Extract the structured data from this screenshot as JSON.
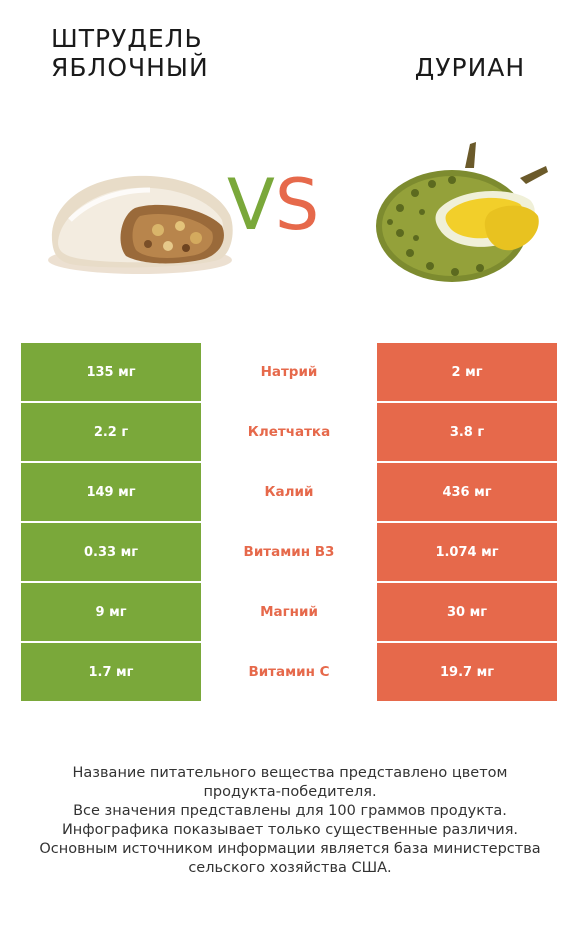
{
  "header": {
    "left_title": "Штрудель яблочный",
    "right_title": "Дуриан",
    "vs_v": "V",
    "vs_s": "S"
  },
  "colors": {
    "left": "#7aa83a",
    "right": "#e6694b"
  },
  "chart_data": {
    "type": "table",
    "columns": [
      "Штрудель яблочный",
      "",
      "Дуриан"
    ],
    "rows": [
      {
        "nutrient": "Натрий",
        "left": "135 мг",
        "right": "2 мг"
      },
      {
        "nutrient": "Клетчатка",
        "left": "2.2 г",
        "right": "3.8 г"
      },
      {
        "nutrient": "Калий",
        "left": "149 мг",
        "right": "436 мг"
      },
      {
        "nutrient": "Витамин B3",
        "left": "0.33 мг",
        "right": "1.074 мг"
      },
      {
        "nutrient": "Магний",
        "left": "9 мг",
        "right": "30 мг"
      },
      {
        "nutrient": "Витамин C",
        "left": "1.7 мг",
        "right": "19.7 мг"
      }
    ]
  },
  "footer": {
    "lines": [
      "Название питательного вещества представлено цветом",
      "продукта-победителя.",
      "Все значения представлены для 100 граммов продукта.",
      "Инфографика показывает только существенные различия.",
      "Основным источником информации является база министерства",
      "сельского хозяйства США."
    ]
  }
}
